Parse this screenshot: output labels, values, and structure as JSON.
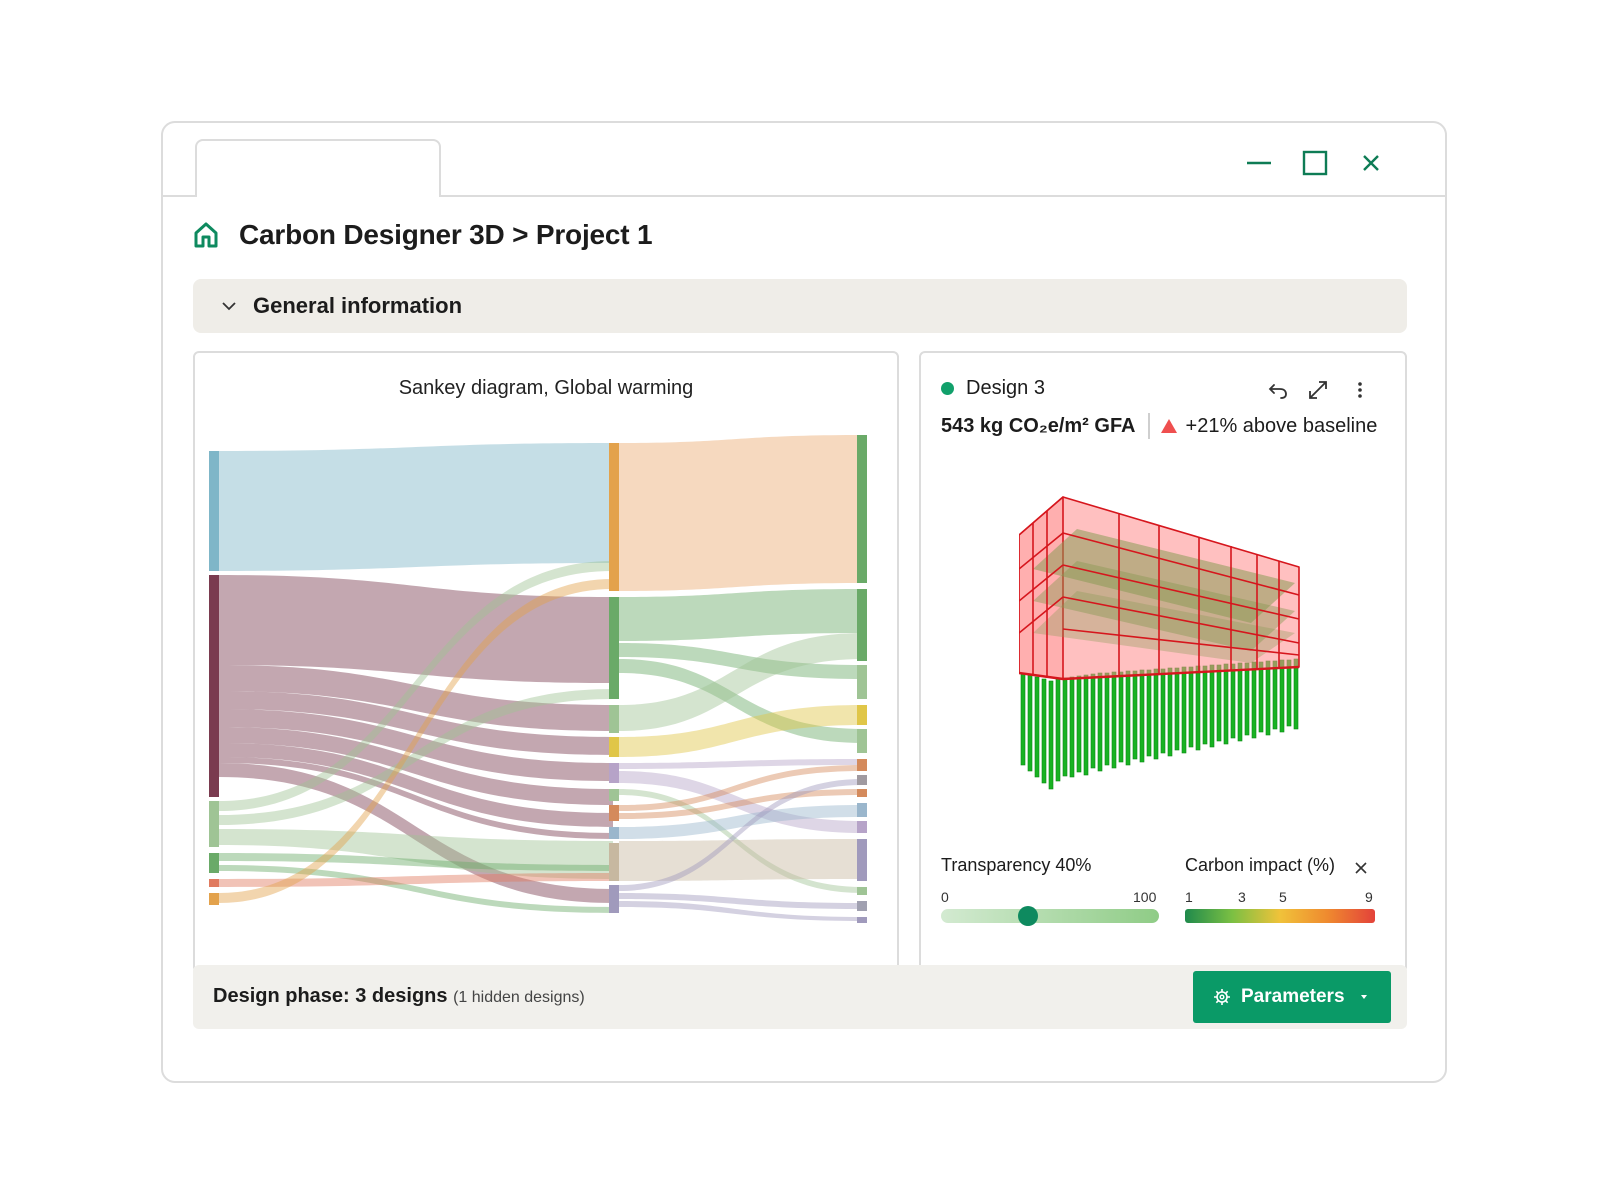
{
  "window": {
    "tab_label": "",
    "controls": [
      "minimize-icon",
      "maximize-icon",
      "close-icon"
    ]
  },
  "breadcrumb": {
    "icon": "home-icon",
    "title": "Carbon Designer 3D > Project 1"
  },
  "section": {
    "icon": "chevron-down-icon",
    "title": "General information"
  },
  "sankey": {
    "title": "Sankey diagram, Global warming",
    "colors": [
      "#7fb6c8",
      "#7a3b4f",
      "#9fc495",
      "#6aaa68",
      "#e07a5f",
      "#e3a24c",
      "#b6a3c8",
      "#e0c648"
    ]
  },
  "design": {
    "name": "Design 3",
    "status_color": "#11a06b",
    "metric": "543 kg CO₂e/m² GFA",
    "baseline_text": "+21% above baseline",
    "baseline_icon": "warning-triangle-icon",
    "actions": [
      "undo-icon",
      "expand-icon",
      "more-vertical-icon"
    ]
  },
  "transparency": {
    "label": "Transparency 40%",
    "min": "0",
    "max": "100",
    "value": 40
  },
  "carbon_scale": {
    "label": "Carbon impact (%)",
    "ticks": [
      "1",
      "3",
      "5",
      "9"
    ],
    "colors": [
      "#1f8a4c",
      "#7cc043",
      "#f0c23a",
      "#ef8a2f",
      "#e3423a"
    ]
  },
  "footer": {
    "phase_label": "Design phase: 3 designs",
    "hidden_note": "(1 hidden designs)",
    "button_label": "Parameters",
    "button_color": "#0a9a67"
  }
}
